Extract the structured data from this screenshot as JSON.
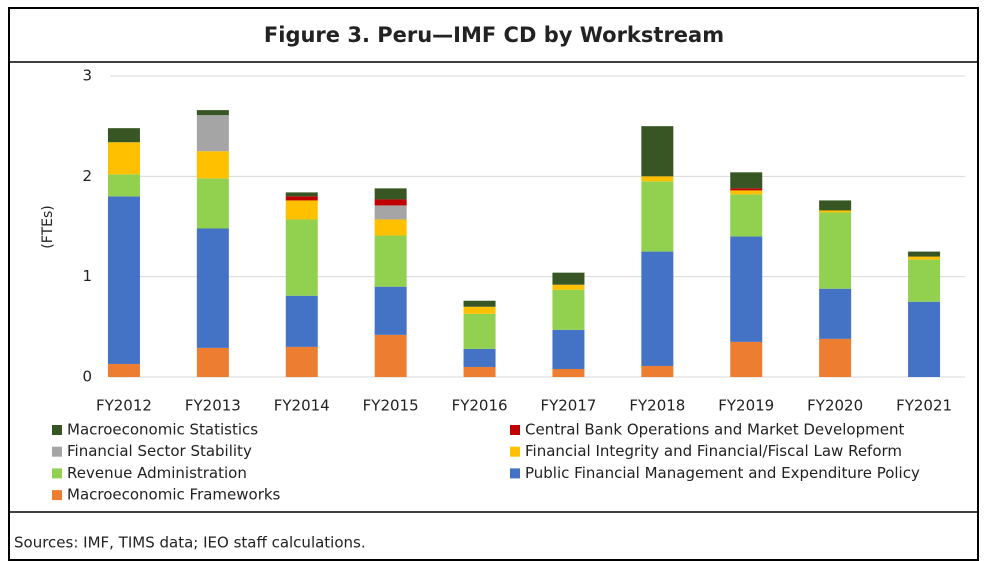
{
  "chart_data": {
    "type": "stacked_bar",
    "title": "Figure 3. Peru—IMF CD by Workstream",
    "y_label": "(FTEs)",
    "source": "Sources: IMF, TIMS data; IEO staff calculations.",
    "categories": [
      "FY2012",
      "FY2013",
      "FY2014",
      "FY2015",
      "FY2016",
      "FY2017",
      "FY2018",
      "FY2019",
      "FY2020",
      "FY2021"
    ],
    "series": [
      {
        "name": "Macroeconomic Statistics",
        "color": "#375623",
        "values": [
          0.14,
          0.05,
          0.04,
          0.11,
          0.06,
          0.12,
          0.5,
          0.16,
          0.1,
          0.05
        ]
      },
      {
        "name": "Central Bank Operations and Market Development",
        "color": "#c00000",
        "values": [
          0,
          0,
          0.04,
          0.06,
          0,
          0,
          0,
          0.02,
          0,
          0
        ]
      },
      {
        "name": "Financial Sector Stability",
        "color": "#a5a5a5",
        "values": [
          0,
          0.36,
          0,
          0.14,
          0,
          0,
          0,
          0,
          0,
          0
        ]
      },
      {
        "name": "Financial Integrity and Financial/Fiscal Law Reform",
        "color": "#ffc000",
        "values": [
          0.32,
          0.27,
          0.19,
          0.16,
          0.07,
          0.05,
          0.05,
          0.04,
          0.02,
          0.03
        ]
      },
      {
        "name": "Revenue Administration",
        "color": "#92d050",
        "values": [
          0.22,
          0.5,
          0.76,
          0.51,
          0.35,
          0.4,
          0.7,
          0.42,
          0.76,
          0.42
        ]
      },
      {
        "name": "Public Financial Management and Expenditure Policy",
        "color": "#4472c4",
        "values": [
          1.67,
          1.19,
          0.51,
          0.48,
          0.18,
          0.39,
          1.14,
          1.05,
          0.5,
          0.75
        ]
      },
      {
        "name": "Macroeconomic Frameworks",
        "color": "#ed7d31",
        "values": [
          0.13,
          0.29,
          0.3,
          0.42,
          0.1,
          0.08,
          0.11,
          0.35,
          0.38,
          0
        ]
      }
    ],
    "ylim": [
      0,
      3
    ],
    "yticks": [
      0,
      1,
      2,
      3
    ],
    "grid": true
  }
}
